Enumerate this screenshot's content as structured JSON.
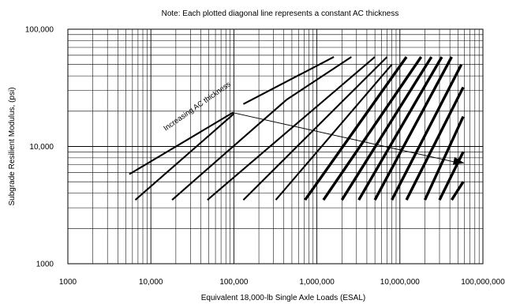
{
  "chart_data": {
    "type": "line",
    "title": "Note: Each plotted diagonal line represents a constant AC thickness",
    "xlabel": "Equivalent 18,000-lb Single Axle Loads (ESAL)",
    "ylabel": "Subgrade Resilient Modulus, (psi)",
    "x_scale": "log",
    "y_scale": "log",
    "xlim": [
      1000,
      100000000
    ],
    "ylim": [
      1000,
      100000
    ],
    "grid": true,
    "x_ticks": [
      {
        "value": 1000,
        "label": "1000"
      },
      {
        "value": 10000,
        "label": "10,000"
      },
      {
        "value": 100000,
        "label": "100,000"
      },
      {
        "value": 1000000,
        "label": "1,000,000"
      },
      {
        "value": 10000000,
        "label": "10,000,000"
      },
      {
        "value": 100000000,
        "label": "100,000,000"
      }
    ],
    "y_ticks": [
      {
        "value": 1000,
        "label": "1000"
      },
      {
        "value": 10000,
        "label": "10,000"
      },
      {
        "value": 100000,
        "label": "100,000"
      }
    ],
    "annotation": {
      "text": "Increasing AC thickness",
      "arrow_from": [
        95000,
        19500
      ],
      "arrow_to": [
        60000000,
        7200
      ]
    },
    "series": [
      {
        "points": [
          [
            5500,
            5800
          ],
          [
            98000,
            19500
          ]
        ],
        "weight": "thin"
      },
      {
        "points": [
          [
            6500,
            3500
          ],
          [
            100000,
            19000
          ]
        ],
        "weight": "thin"
      },
      {
        "points": [
          [
            130000,
            23000
          ],
          [
            1600000,
            58000
          ]
        ],
        "weight": "thin"
      },
      {
        "points": [
          [
            18000,
            3500
          ],
          [
            430000,
            25000
          ]
        ],
        "weight": "thin"
      },
      {
        "points": [
          [
            430000,
            25000
          ],
          [
            2600000,
            58000
          ]
        ],
        "weight": "thin"
      },
      {
        "points": [
          [
            48000,
            3500
          ],
          [
            5000000,
            58000
          ]
        ],
        "weight": "thin"
      },
      {
        "points": [
          [
            130000,
            3500
          ],
          [
            7000000,
            58000
          ]
        ],
        "weight": "thin"
      },
      {
        "points": [
          [
            320000,
            3500
          ],
          [
            8000000,
            50000
          ]
        ],
        "weight": "thin"
      },
      {
        "points": [
          [
            720000,
            3500
          ],
          [
            12000000,
            58000
          ]
        ],
        "weight": "thick"
      },
      {
        "points": [
          [
            1200000,
            3500
          ],
          [
            18000000,
            58000
          ]
        ],
        "weight": "thick"
      },
      {
        "points": [
          [
            2000000,
            3500
          ],
          [
            24000000,
            58000
          ]
        ],
        "weight": "thick"
      },
      {
        "points": [
          [
            3200000,
            3500
          ],
          [
            32000000,
            58000
          ]
        ],
        "weight": "thick"
      },
      {
        "points": [
          [
            5000000,
            3500
          ],
          [
            42000000,
            58000
          ]
        ],
        "weight": "thick"
      },
      {
        "points": [
          [
            8000000,
            3500
          ],
          [
            55000000,
            50000
          ]
        ],
        "weight": "thick"
      },
      {
        "points": [
          [
            12000000,
            3500
          ],
          [
            58000000,
            32000
          ]
        ],
        "weight": "thick"
      },
      {
        "points": [
          [
            20000000,
            3500
          ],
          [
            58000000,
            18000
          ]
        ],
        "weight": "thick"
      },
      {
        "points": [
          [
            30000000,
            3500
          ],
          [
            58000000,
            9000
          ]
        ],
        "weight": "thick"
      },
      {
        "points": [
          [
            42000000,
            3500
          ],
          [
            58000000,
            5000
          ]
        ],
        "weight": "thick"
      }
    ]
  }
}
